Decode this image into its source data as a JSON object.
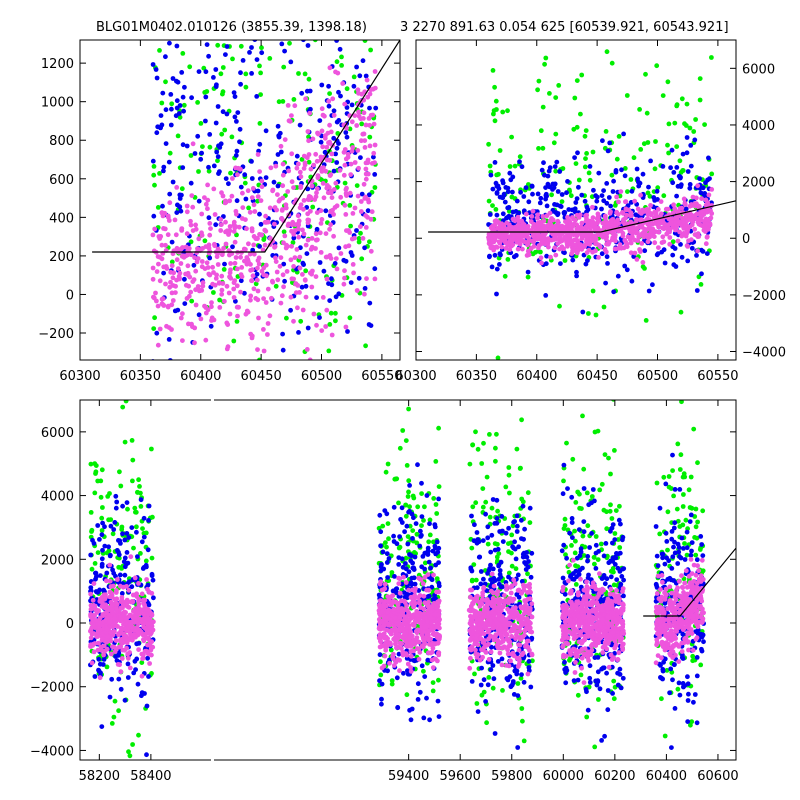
{
  "chart_data": [
    {
      "type": "scatter",
      "panel": "top-left",
      "title": "BLG01M0402.010126 (3855.39, 1398.18)",
      "xlim": [
        60300,
        60565
      ],
      "ylim": [
        -340,
        1320
      ],
      "xticks": [
        60300,
        60350,
        60400,
        60450,
        60500,
        60550
      ],
      "yticks": [
        -200,
        0,
        200,
        400,
        600,
        800,
        1000,
        1200
      ],
      "y_axis_side": "left",
      "colors": {
        "green": "#00ee00",
        "blue": "#0000ee",
        "pink": "#ee55dd"
      },
      "series": [
        {
          "color": "green",
          "x_range": [
            60360,
            60545
          ],
          "y_center": 800,
          "y_spread": 600,
          "count": 260
        },
        {
          "color": "blue",
          "x_range": [
            60360,
            60545
          ],
          "y_center": 650,
          "y_spread": 550,
          "count": 420
        },
        {
          "color": "pink",
          "x_range": [
            60360,
            60545
          ],
          "y_baseline": 150,
          "y_spread": 220,
          "count": 700
        }
      ],
      "model_line": {
        "x": [
          60310,
          60453,
          60565
        ],
        "y": [
          220,
          220,
          1320
        ]
      }
    },
    {
      "type": "scatter",
      "panel": "top-right",
      "title": "3 2270 891.63 0.054 625 [60539.921, 60543.921]",
      "xlim": [
        60300,
        60565
      ],
      "ylim": [
        -4300,
        7000
      ],
      "xticks": [
        60300,
        60350,
        60400,
        60450,
        60500,
        60550
      ],
      "yticks": [
        -4000,
        -2000,
        0,
        2000,
        4000,
        6000
      ],
      "y_axis_side": "right",
      "series": [
        {
          "color": "green",
          "x_range": [
            60360,
            60545
          ],
          "y_center": 2000,
          "y_spread": 2200,
          "count": 220
        },
        {
          "color": "blue",
          "x_range": [
            60360,
            60545
          ],
          "y_center": 700,
          "y_spread": 1100,
          "count": 450
        },
        {
          "color": "pink",
          "x_range": [
            60360,
            60545
          ],
          "y_baseline": 150,
          "y_spread": 320,
          "count": 900
        }
      ],
      "model_line": {
        "x": [
          60310,
          60453,
          60565
        ],
        "y": [
          220,
          220,
          1320
        ]
      }
    },
    {
      "type": "scatter",
      "panel": "bottom",
      "xlim": [
        58125,
        60670
      ],
      "ylim": [
        -4300,
        7000
      ],
      "xticks": [
        58200,
        58400,
        59400,
        59600,
        59800,
        60000,
        60200,
        60400,
        60600
      ],
      "yticks": [
        -4000,
        -2000,
        0,
        2000,
        4000,
        6000
      ],
      "y_axis_side": "left",
      "seasons": [
        [
          58165,
          58410
        ],
        [
          59285,
          59520
        ],
        [
          59635,
          59880
        ],
        [
          59995,
          60235
        ],
        [
          60360,
          60545
        ]
      ],
      "model_line": {
        "x": [
          60310,
          60453,
          60670
        ],
        "y": [
          220,
          220,
          2350
        ]
      }
    }
  ]
}
